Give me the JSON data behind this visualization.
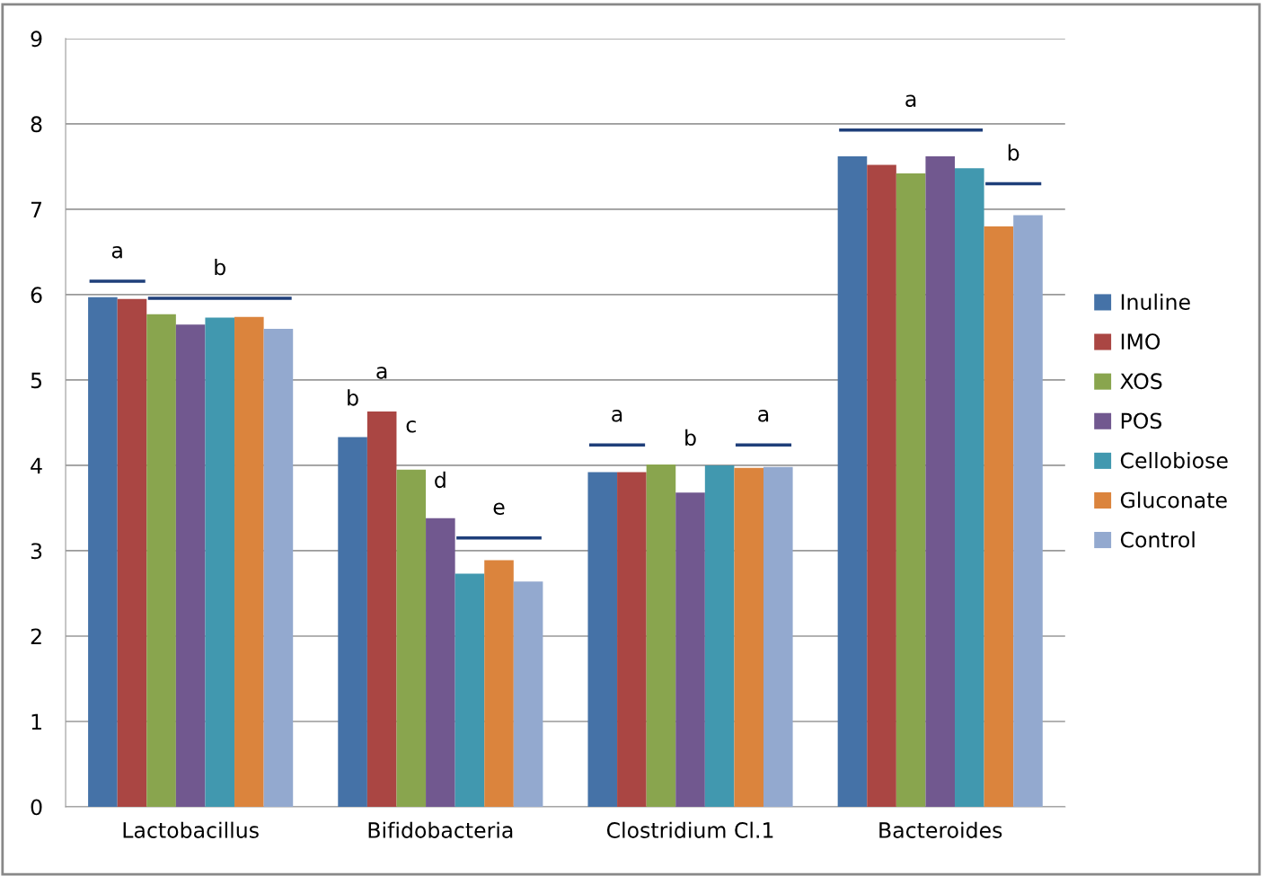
{
  "chart_data": {
    "type": "bar",
    "categories": [
      "Lactobacillus",
      "Bifidobacteria",
      "Clostridium Cl.1",
      "Bacteroides"
    ],
    "series": [
      {
        "name": "Inuline",
        "color": "#4572a7",
        "values": [
          5.97,
          4.33,
          3.92,
          7.62
        ]
      },
      {
        "name": "IMO",
        "color": "#aa4643",
        "values": [
          5.95,
          4.63,
          3.92,
          7.52
        ]
      },
      {
        "name": "XOS",
        "color": "#89a54e",
        "values": [
          5.77,
          3.95,
          4.01,
          7.42
        ]
      },
      {
        "name": "POS",
        "color": "#71588f",
        "values": [
          5.65,
          3.38,
          3.68,
          7.62
        ]
      },
      {
        "name": "Cellobiose",
        "color": "#4198af",
        "values": [
          5.73,
          2.73,
          4.0,
          7.48
        ]
      },
      {
        "name": "Gluconate",
        "color": "#db843d",
        "values": [
          5.74,
          2.89,
          3.97,
          6.8
        ]
      },
      {
        "name": "Control",
        "color": "#93a9cf",
        "values": [
          5.6,
          2.64,
          3.98,
          6.93
        ]
      }
    ],
    "annotations": [
      "a",
      "b",
      "b",
      "a",
      "c",
      "d",
      "e",
      "a",
      "b",
      "a",
      "a",
      "b"
    ],
    "ylim": [
      0,
      9
    ],
    "yticks": [
      0,
      1,
      2,
      3,
      4,
      5,
      6,
      7,
      8,
      9
    ],
    "grid": "y",
    "legend": "right"
  }
}
